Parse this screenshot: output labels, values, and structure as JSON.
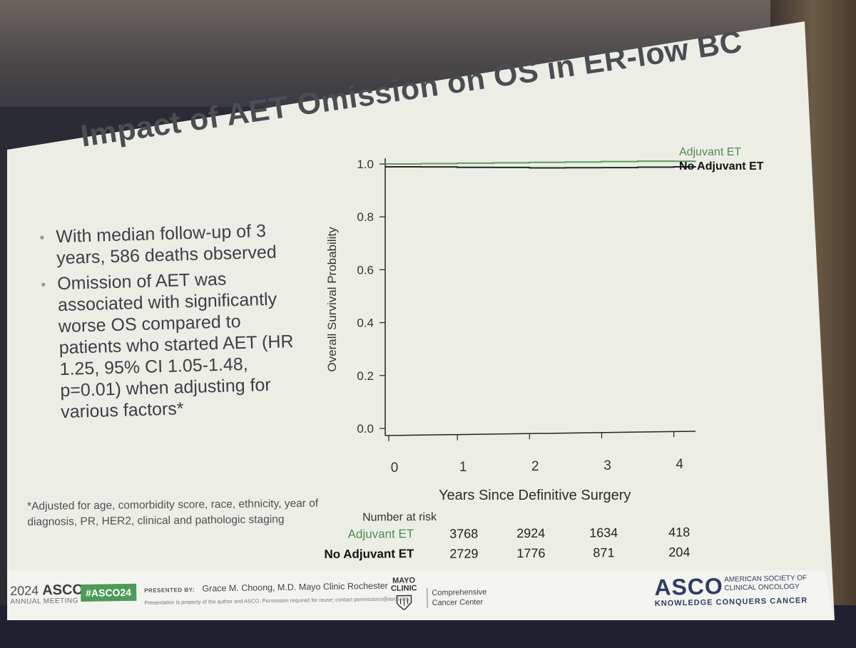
{
  "title": "Impact of AET Omission on OS in ER-low BC",
  "bullets": [
    "With median follow-up of 3 years, 586 deaths observed",
    "Omission of AET was associated with significantly worse OS compared to patients who started AET (HR 1.25, 95% CI 1.05-1.48, p=0.01) when adjusting for various factors*"
  ],
  "footnote": "*Adjusted for age, comorbidity score, race, ethnicity,  year of diagnosis, PR, HER2, clinical and pathologic staging",
  "chart_data": {
    "type": "line",
    "title": "",
    "xlabel": "Years Since Definitive Surgery",
    "ylabel": "Overall Survival Probability",
    "xlim": [
      0,
      4.3
    ],
    "ylim": [
      0,
      1.0
    ],
    "xticks": [
      "0",
      "1",
      "2",
      "3",
      "4"
    ],
    "yticks": [
      "0.0",
      "0.2",
      "0.4",
      "0.6",
      "0.8",
      "1.0"
    ],
    "series": [
      {
        "name": "Adjuvant ET",
        "color": "#5f9a66",
        "x": [
          0,
          0.5,
          1,
          1.5,
          2,
          2.5,
          3,
          3.5,
          4,
          4.3
        ],
        "y": [
          1.0,
          0.999,
          0.998,
          0.997,
          0.996,
          0.995,
          0.994,
          0.993,
          0.99,
          0.99
        ]
      },
      {
        "name": "No Adjuvant ET",
        "color": "#1e2a22",
        "x": [
          0,
          0.5,
          1,
          1.5,
          2,
          2.5,
          3,
          3.5,
          4,
          4.3
        ],
        "y": [
          1.0,
          0.997,
          0.993,
          0.99,
          0.986,
          0.984,
          0.982,
          0.981,
          0.98,
          0.98
        ]
      }
    ],
    "risk_table": {
      "header": "Number at risk",
      "rows": [
        {
          "label": "Adjuvant ET",
          "values": [
            "3768",
            "2924",
            "1634",
            "418"
          ]
        },
        {
          "label": "No Adjuvant ET",
          "values": [
            "2729",
            "1776",
            "871",
            "204"
          ]
        }
      ]
    }
  },
  "footer": {
    "year": "2024",
    "asco": "ASCO",
    "annual": "ANNUAL MEETING",
    "hashtag": "#ASCO24",
    "presented_by": "PRESENTED BY:",
    "presenter": "Grace M. Choong, M.D. Mayo Clinic Rochester",
    "disclaimer": "Presentation is property of the author and ASCO. Permission required for reuse; contact permissions@asco.org.",
    "mayo_line1": "MAYO",
    "mayo_line2": "CLINIC",
    "mayo_center1": "Comprehensive",
    "mayo_center2": "Cancer Center",
    "asco_logo": "ASCO",
    "society1": "AMERICAN SOCIETY OF",
    "society2": "CLINICAL ONCOLOGY",
    "tagline": "KNOWLEDGE CONQUERS CANCER"
  }
}
